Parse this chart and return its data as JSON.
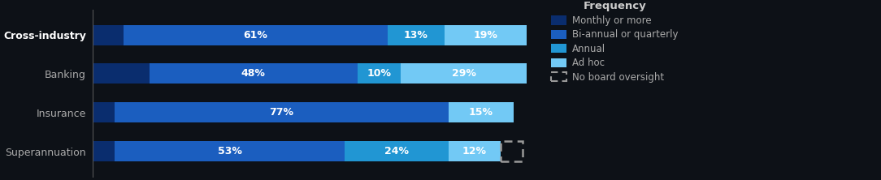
{
  "categories": [
    "Cross-industry",
    "Banking",
    "Insurance",
    "Superannuation"
  ],
  "segments": {
    "monthly": [
      7,
      13,
      5,
      5
    ],
    "biannual": [
      61,
      48,
      77,
      53
    ],
    "annual": [
      13,
      10,
      0,
      24
    ],
    "adhoc": [
      19,
      29,
      15,
      12
    ],
    "noboard": [
      0,
      0,
      0,
      5
    ]
  },
  "labels": {
    "monthly": [
      "",
      "",
      "",
      ""
    ],
    "biannual": [
      "61%",
      "48%",
      "77%",
      "53%"
    ],
    "annual": [
      "13%",
      "10%",
      "",
      "24%"
    ],
    "adhoc": [
      "19%",
      "29%",
      "15%",
      "12%"
    ],
    "noboard": [
      "",
      "",
      "",
      ""
    ]
  },
  "colors": {
    "monthly": "#0A2D6E",
    "biannual": "#1B5EBF",
    "annual": "#2196D3",
    "adhoc": "#72C9F5",
    "noboard": "none"
  },
  "legend_labels": [
    "Monthly or more",
    "Bi-annual or quarterly",
    "Annual",
    "Ad hoc",
    "No board oversight"
  ],
  "legend_title": "Frequency",
  "background_color": "#0D1117",
  "bar_bg_color": "#0D1117",
  "text_color": "#FFFFFF",
  "ytick_color_bold": "#FFFFFF",
  "ytick_color_normal": "#AAAAAA",
  "dashed_color": "#999999",
  "bar_height": 0.52,
  "figsize": [
    10.84,
    2.22
  ],
  "dpi": 100,
  "xlim": [
    0,
    104
  ],
  "label_fontsize": 9,
  "ytick_fontsize": 9
}
